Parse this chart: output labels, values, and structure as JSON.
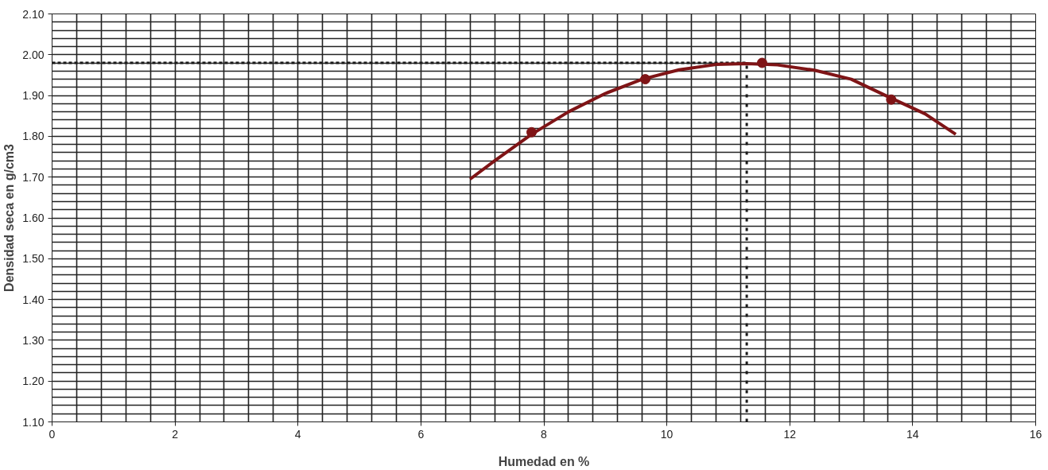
{
  "chart_data": {
    "type": "scatter",
    "xlabel": "Humedad en %",
    "ylabel": "Densidad seca en g/cm3",
    "xlim": [
      0,
      16
    ],
    "ylim": [
      1.1,
      2.1
    ],
    "xticks": [
      0,
      {
        "value": 0.4,
        "label": null
      },
      {
        "value": 0.8,
        "label": null
      },
      {
        "value": 1.2,
        "label": null
      },
      {
        "value": 1.6,
        "label": null
      },
      2,
      {
        "value": 2.4,
        "label": null
      },
      {
        "value": 2.8,
        "label": null
      },
      {
        "value": 3.2,
        "label": null
      },
      {
        "value": 3.6,
        "label": null
      },
      4,
      {
        "value": 4.4,
        "label": null
      },
      {
        "value": 4.8,
        "label": null
      },
      {
        "value": 5.2,
        "label": null
      },
      {
        "value": 5.6,
        "label": null
      },
      6,
      {
        "value": 6.4,
        "label": null
      },
      {
        "value": 6.8,
        "label": null
      },
      {
        "value": 7.2,
        "label": null
      },
      {
        "value": 7.6,
        "label": null
      },
      8,
      {
        "value": 8.4,
        "label": null
      },
      {
        "value": 8.8,
        "label": null
      },
      {
        "value": 9.2,
        "label": null
      },
      {
        "value": 9.6,
        "label": null
      },
      10,
      {
        "value": 10.4,
        "label": null
      },
      {
        "value": 10.8,
        "label": null
      },
      {
        "value": 11.2,
        "label": null
      },
      {
        "value": 11.6,
        "label": null
      },
      12,
      {
        "value": 12.4,
        "label": null
      },
      {
        "value": 12.8,
        "label": null
      },
      {
        "value": 13.2,
        "label": null
      },
      {
        "value": 13.6,
        "label": null
      },
      14,
      {
        "value": 14.4,
        "label": null
      },
      {
        "value": 14.8,
        "label": null
      },
      {
        "value": 15.2,
        "label": null
      },
      {
        "value": 15.6,
        "label": null
      },
      16
    ],
    "yticks": [
      {
        "value": 1.1,
        "label": "1.10"
      },
      {
        "value": 1.12,
        "label": null
      },
      {
        "value": 1.14,
        "label": null
      },
      {
        "value": 1.16,
        "label": null
      },
      {
        "value": 1.18,
        "label": null
      },
      {
        "value": 1.2,
        "label": "1.20"
      },
      {
        "value": 1.22,
        "label": null
      },
      {
        "value": 1.24,
        "label": null
      },
      {
        "value": 1.26,
        "label": null
      },
      {
        "value": 1.28,
        "label": null
      },
      {
        "value": 1.3,
        "label": "1.30"
      },
      {
        "value": 1.32,
        "label": null
      },
      {
        "value": 1.34,
        "label": null
      },
      {
        "value": 1.36,
        "label": null
      },
      {
        "value": 1.38,
        "label": null
      },
      {
        "value": 1.4,
        "label": "1.40"
      },
      {
        "value": 1.42,
        "label": null
      },
      {
        "value": 1.44,
        "label": null
      },
      {
        "value": 1.46,
        "label": null
      },
      {
        "value": 1.48,
        "label": null
      },
      {
        "value": 1.5,
        "label": "1.50"
      },
      {
        "value": 1.52,
        "label": null
      },
      {
        "value": 1.54,
        "label": null
      },
      {
        "value": 1.56,
        "label": null
      },
      {
        "value": 1.58,
        "label": null
      },
      {
        "value": 1.6,
        "label": "1.60"
      },
      {
        "value": 1.62,
        "label": null
      },
      {
        "value": 1.64,
        "label": null
      },
      {
        "value": 1.66,
        "label": null
      },
      {
        "value": 1.68,
        "label": null
      },
      {
        "value": 1.7,
        "label": "1.70"
      },
      {
        "value": 1.72,
        "label": null
      },
      {
        "value": 1.74,
        "label": null
      },
      {
        "value": 1.76,
        "label": null
      },
      {
        "value": 1.78,
        "label": null
      },
      {
        "value": 1.8,
        "label": "1.80"
      },
      {
        "value": 1.82,
        "label": null
      },
      {
        "value": 1.84,
        "label": null
      },
      {
        "value": 1.86,
        "label": null
      },
      {
        "value": 1.88,
        "label": null
      },
      {
        "value": 1.9,
        "label": "1.90"
      },
      {
        "value": 1.92,
        "label": null
      },
      {
        "value": 1.94,
        "label": null
      },
      {
        "value": 1.96,
        "label": null
      },
      {
        "value": 1.98,
        "label": null
      },
      {
        "value": 2.0,
        "label": "2.00"
      },
      {
        "value": 2.02,
        "label": null
      },
      {
        "value": 2.04,
        "label": null
      },
      {
        "value": 2.06,
        "label": null
      },
      {
        "value": 2.08,
        "label": null
      },
      {
        "value": 2.1,
        "label": "2.10"
      }
    ],
    "grid": true,
    "marker": "circle",
    "series": [
      {
        "color": "#7f1416",
        "x": [
          7.8,
          9.65,
          11.55,
          13.65
        ],
        "values": [
          1.81,
          1.94,
          1.98,
          1.89
        ]
      },
      {
        "type": "line",
        "color": "#7f1416",
        "marker": "none",
        "line_style": "solid",
        "x": [
          6.8,
          7.2,
          7.8,
          8.4,
          9.0,
          9.6,
          10.2,
          10.8,
          11.3,
          11.8,
          12.4,
          13.0,
          13.6,
          14.2,
          14.7
        ],
        "values": [
          1.695,
          1.74,
          1.805,
          1.86,
          1.905,
          1.94,
          1.963,
          1.976,
          1.978,
          1.975,
          1.962,
          1.94,
          1.897,
          1.855,
          1.805
        ]
      }
    ],
    "ref_lines": [
      {
        "axis": "y",
        "value": 1.98,
        "color": "#1a1a1a",
        "line_style": "dashed"
      },
      {
        "axis": "x",
        "value": 11.3,
        "color": "#1a1a1a",
        "line_style": "dotted"
      }
    ]
  }
}
